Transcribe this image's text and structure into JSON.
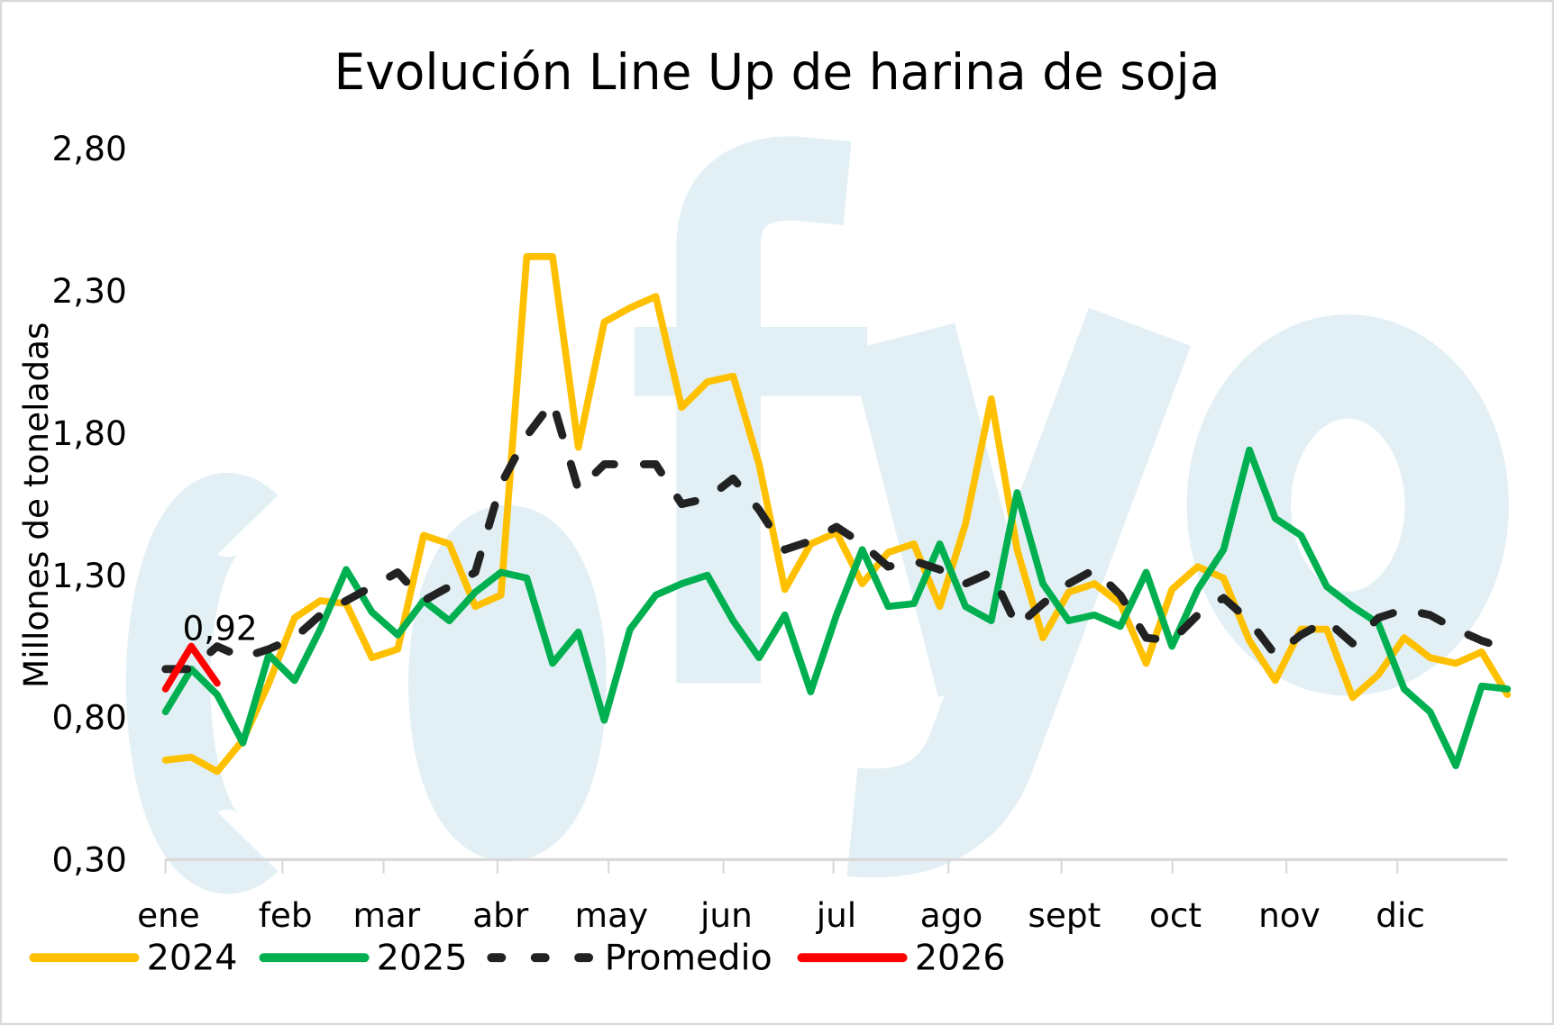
{
  "chart_data": {
    "type": "line",
    "title": "Evolución Line Up de harina de soja",
    "xlabel": "",
    "ylabel": "Millones de toneladas",
    "ylim": [
      0.3,
      2.8
    ],
    "yticks": [
      "0,30",
      "0,80",
      "1,30",
      "1,80",
      "2,30",
      "2,80"
    ],
    "ytick_values": [
      0.3,
      0.8,
      1.3,
      1.8,
      2.3,
      2.8
    ],
    "months": [
      "ene",
      "feb",
      "mar",
      "abr",
      "may",
      "jun",
      "jul",
      "ago",
      "sept",
      "oct",
      "nov",
      "dic"
    ],
    "x_unit": "week",
    "legend_position": "bottom",
    "watermark": "cfyo",
    "series": [
      {
        "name": "2024",
        "color": "#ffc000",
        "dashed": false,
        "values": [
          0.65,
          0.66,
          0.61,
          0.72,
          0.92,
          1.15,
          1.21,
          1.2,
          1.01,
          1.04,
          1.44,
          1.41,
          1.19,
          1.23,
          2.42,
          2.42,
          1.75,
          2.19,
          2.24,
          2.28,
          1.89,
          1.98,
          2.0,
          1.69,
          1.25,
          1.41,
          1.45,
          1.27,
          1.38,
          1.41,
          1.19,
          1.48,
          1.92,
          1.39,
          1.08,
          1.24,
          1.27,
          1.2,
          0.99,
          1.25,
          1.33,
          1.29,
          1.07,
          0.93,
          1.11,
          1.11,
          0.87,
          0.95,
          1.08,
          1.01,
          0.99,
          1.03,
          0.88
        ]
      },
      {
        "name": "2025",
        "color": "#00b050",
        "dashed": false,
        "values": [
          0.82,
          0.97,
          0.88,
          0.71,
          1.02,
          0.93,
          1.11,
          1.32,
          1.17,
          1.09,
          1.21,
          1.14,
          1.24,
          1.31,
          1.29,
          0.99,
          1.1,
          0.79,
          1.11,
          1.23,
          1.27,
          1.3,
          1.14,
          1.01,
          1.16,
          0.89,
          1.16,
          1.39,
          1.19,
          1.2,
          1.41,
          1.19,
          1.14,
          1.59,
          1.27,
          1.14,
          1.16,
          1.12,
          1.31,
          1.05,
          1.25,
          1.39,
          1.74,
          1.5,
          1.44,
          1.26,
          1.19,
          1.13,
          0.9,
          0.82,
          0.63,
          0.91,
          0.9
        ]
      },
      {
        "name": "Promedio",
        "color": "#222222",
        "dashed": true,
        "values": [
          0.97,
          0.97,
          1.05,
          1.01,
          1.04,
          1.08,
          1.16,
          1.21,
          1.26,
          1.31,
          1.21,
          1.26,
          1.31,
          1.62,
          1.79,
          1.91,
          1.6,
          1.69,
          1.69,
          1.69,
          1.55,
          1.57,
          1.64,
          1.53,
          1.39,
          1.42,
          1.47,
          1.41,
          1.33,
          1.35,
          1.32,
          1.27,
          1.31,
          1.12,
          1.2,
          1.27,
          1.32,
          1.23,
          1.08,
          1.07,
          1.16,
          1.22,
          1.14,
          1.02,
          1.09,
          1.14,
          1.06,
          1.15,
          1.18,
          1.16,
          1.11,
          1.07,
          1.04
        ]
      },
      {
        "name": "2026",
        "color": "#ff0000",
        "dashed": false,
        "values": [
          0.9,
          1.05,
          0.92
        ]
      }
    ],
    "annotations": [
      {
        "series": "2026",
        "point_index": 2,
        "text": "0,92"
      }
    ]
  }
}
